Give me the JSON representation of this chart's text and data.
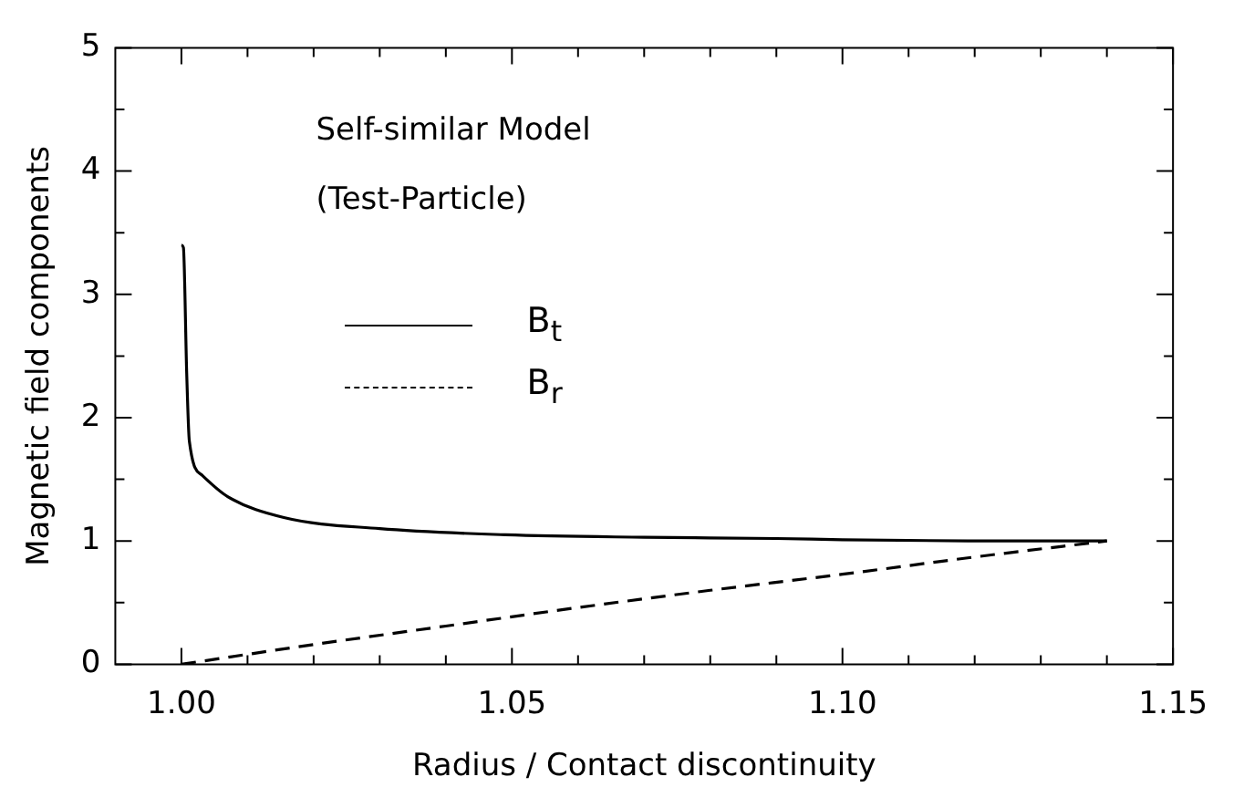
{
  "chart_data": {
    "type": "line",
    "xlabel": "Radius / Contact discontinuity",
    "ylabel": "Magnetic field components",
    "annotations": [
      "Self-similar Model",
      "(Test-Particle)"
    ],
    "series": [
      {
        "name": "B$_{t}$",
        "color": "#000000",
        "line_style": "solid",
        "x": [
          1.0,
          1.0003,
          1.0008,
          1.0012,
          1.0032,
          1.007,
          1.0155,
          1.03,
          1.049,
          1.07,
          1.09,
          1.1,
          1.12,
          1.14
        ],
        "values": [
          3.4,
          3.38,
          2.36,
          1.81,
          1.53,
          1.36,
          1.19,
          1.1,
          1.05,
          1.03,
          1.02,
          1.01,
          1.0,
          1.0
        ]
      },
      {
        "name": "B$_{r}$",
        "color": "#000000",
        "line_style": "dashed",
        "x": [
          1.0,
          1.02,
          1.04,
          1.06,
          1.08,
          1.1,
          1.12,
          1.14
        ],
        "values": [
          0.0,
          0.16,
          0.31,
          0.46,
          0.6,
          0.73,
          0.87,
          1.0
        ]
      }
    ],
    "xlim": [
      0.99,
      1.15
    ],
    "xticks": [
      {
        "value": 1.0,
        "label": "1.00"
      },
      {
        "value": 1.01,
        "label": null
      },
      {
        "value": 1.02,
        "label": null
      },
      {
        "value": 1.03,
        "label": null
      },
      {
        "value": 1.04,
        "label": null
      },
      {
        "value": 1.05,
        "label": "1.05"
      },
      {
        "value": 1.06,
        "label": null
      },
      {
        "value": 1.07,
        "label": null
      },
      {
        "value": 1.08,
        "label": null
      },
      {
        "value": 1.09,
        "label": null
      },
      {
        "value": 1.1,
        "label": "1.10"
      },
      {
        "value": 1.11,
        "label": null
      },
      {
        "value": 1.12,
        "label": null
      },
      {
        "value": 1.13,
        "label": null
      },
      {
        "value": 1.14,
        "label": null
      },
      {
        "value": 1.15,
        "label": "1.15"
      }
    ],
    "ylim": [
      0,
      5
    ],
    "yticks": [
      0,
      {
        "value": 0.5,
        "label": null
      },
      1,
      {
        "value": 1.5,
        "label": null
      },
      2,
      {
        "value": 2.5,
        "label": null
      },
      3,
      {
        "value": 3.5,
        "label": null
      },
      4,
      {
        "value": 4.5,
        "label": null
      },
      5
    ],
    "grid": false,
    "legend": "center",
    "marker": "none"
  }
}
